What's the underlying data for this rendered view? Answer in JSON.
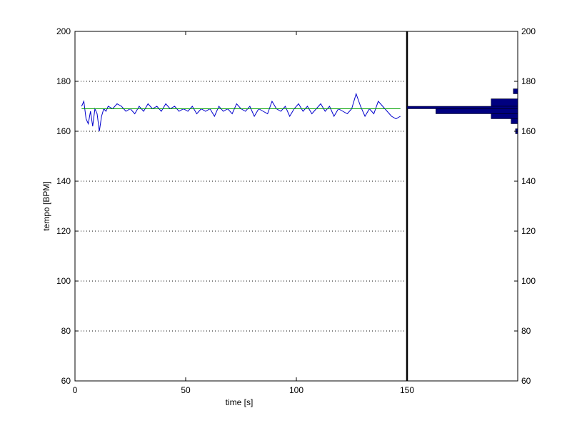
{
  "chart_data": {
    "type": "line",
    "title": "",
    "xlabel": "time [s]",
    "ylabel": "tempo [BPM]",
    "xlim": [
      0,
      150
    ],
    "ylim": [
      60,
      200
    ],
    "x_ticks": [
      0,
      50,
      100,
      150
    ],
    "y_ticks": [
      60,
      80,
      100,
      120,
      140,
      160,
      180,
      200
    ],
    "grid": "horizontal-dotted",
    "series": [
      {
        "style": "line",
        "color": "#0000cc",
        "x": [
          3,
          4,
          5,
          6,
          7,
          8,
          9,
          10,
          11,
          12,
          13,
          14,
          15,
          17,
          19,
          21,
          23,
          25,
          27,
          29,
          31,
          33,
          35,
          37,
          39,
          41,
          43,
          45,
          47,
          49,
          51,
          53,
          55,
          57,
          59,
          61,
          63,
          65,
          67,
          69,
          71,
          73,
          75,
          77,
          79,
          81,
          83,
          85,
          87,
          89,
          91,
          93,
          95,
          97,
          99,
          101,
          103,
          105,
          107,
          109,
          111,
          113,
          115,
          117,
          119,
          121,
          123,
          125,
          127,
          129,
          131,
          133,
          135,
          137,
          139,
          141,
          143,
          145,
          147
        ],
        "y": [
          170,
          172,
          165,
          163,
          168,
          162,
          169,
          167,
          160,
          166,
          169,
          168,
          170,
          169,
          171,
          170,
          168,
          169,
          167,
          170,
          168,
          171,
          169,
          170,
          168,
          171,
          169,
          170,
          168,
          169,
          168,
          170,
          167,
          169,
          168,
          169,
          166,
          170,
          168,
          169,
          167,
          171,
          169,
          168,
          170,
          166,
          169,
          168,
          167,
          172,
          169,
          168,
          170,
          166,
          169,
          171,
          168,
          170,
          167,
          169,
          171,
          168,
          170,
          166,
          169,
          168,
          167,
          169,
          175,
          170,
          166,
          169,
          167,
          172,
          170,
          168,
          166,
          165,
          166
        ]
      },
      {
        "style": "line",
        "color": "#00a000",
        "x": [
          3,
          147
        ],
        "y": [
          169,
          169
        ]
      }
    ],
    "right_axis": {
      "ylim": [
        60,
        200
      ],
      "y_ticks": [
        60,
        80,
        100,
        120,
        140,
        160,
        180,
        200
      ]
    },
    "histogram": {
      "orientation": "horizontal",
      "color": "#000080",
      "xlim": [
        150,
        200
      ],
      "bins": [
        {
          "y0": 175,
          "y1": 177,
          "x": 198
        },
        {
          "y0": 170,
          "y1": 173,
          "x": 188
        },
        {
          "y0": 169,
          "y1": 170,
          "x": 150
        },
        {
          "y0": 167,
          "y1": 169,
          "x": 163
        },
        {
          "y0": 165,
          "y1": 167,
          "x": 188
        },
        {
          "y0": 163,
          "y1": 165,
          "x": 197
        },
        {
          "y0": 159,
          "y1": 161,
          "x": 199
        }
      ]
    }
  }
}
